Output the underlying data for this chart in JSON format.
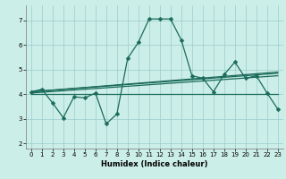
{
  "xlabel": "Humidex (Indice chaleur)",
  "bg_color": "#cceee8",
  "grid_color": "#99cccc",
  "line_color": "#1a6b5a",
  "xlim": [
    -0.5,
    23.5
  ],
  "ylim": [
    1.8,
    7.6
  ],
  "yticks": [
    2,
    3,
    4,
    5,
    6,
    7
  ],
  "xticks": [
    0,
    1,
    2,
    3,
    4,
    5,
    6,
    7,
    8,
    9,
    10,
    11,
    12,
    13,
    14,
    15,
    16,
    17,
    18,
    19,
    20,
    21,
    22,
    23
  ],
  "series": [
    {
      "x": [
        0,
        1,
        2,
        3,
        4,
        5,
        6,
        7,
        8,
        9,
        10,
        11,
        12,
        13,
        14,
        15,
        16,
        17,
        18,
        19,
        20,
        21,
        22,
        23
      ],
      "y": [
        4.1,
        4.2,
        3.65,
        3.05,
        3.9,
        3.85,
        4.05,
        2.8,
        3.2,
        5.45,
        6.1,
        7.05,
        7.05,
        7.05,
        6.2,
        4.75,
        4.65,
        4.1,
        4.8,
        5.3,
        4.65,
        4.75,
        4.05,
        3.4
      ],
      "marker": "D",
      "markersize": 2.5,
      "linewidth": 0.9
    },
    {
      "x": [
        0,
        23
      ],
      "y": [
        4.0,
        4.0
      ],
      "marker": null,
      "markersize": 0,
      "linewidth": 0.9
    },
    {
      "x": [
        0,
        23
      ],
      "y": [
        4.1,
        4.9
      ],
      "marker": null,
      "markersize": 0,
      "linewidth": 0.9
    },
    {
      "x": [
        0,
        23
      ],
      "y": [
        4.1,
        4.85
      ],
      "marker": null,
      "markersize": 0,
      "linewidth": 0.9
    },
    {
      "x": [
        0,
        23
      ],
      "y": [
        4.05,
        4.75
      ],
      "marker": null,
      "markersize": 0,
      "linewidth": 0.9
    }
  ]
}
